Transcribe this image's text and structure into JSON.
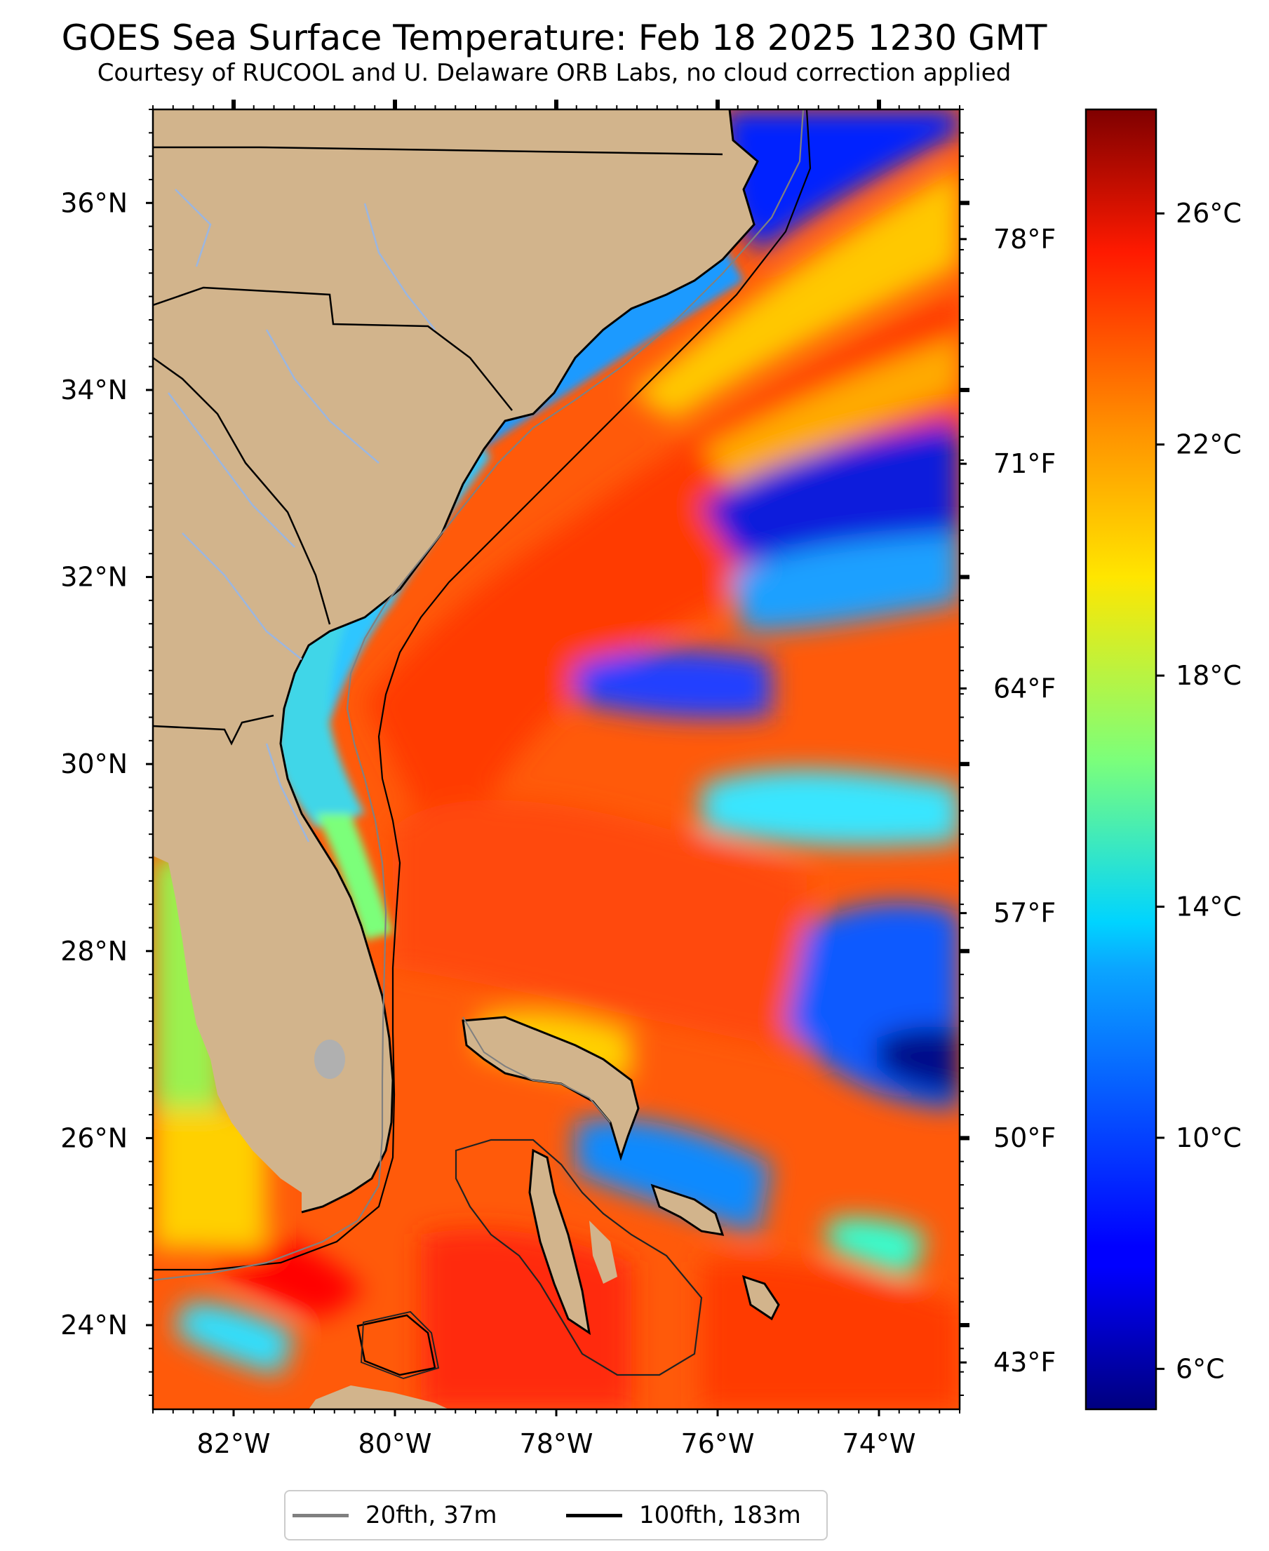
{
  "title": "GOES Sea Surface Temperature: Feb 18 2025 1230 GMT",
  "subtitle": "Courtesy of RUCOOL and U. Delaware ORB Labs, no cloud correction applied",
  "colors": {
    "land": "#d2b48c",
    "land_border": "#000000",
    "rivers": "#9bb6e0",
    "contour_20fth": "#808080",
    "contour_100fth": "#000000",
    "no_data": "#ffffff"
  },
  "map": {
    "longitude_range": [
      -83,
      -73
    ],
    "latitude_range": [
      23.1,
      37
    ],
    "lat_labels": [
      "36°N",
      "34°N",
      "32°N",
      "30°N",
      "28°N",
      "26°N",
      "24°N"
    ],
    "lat_values": [
      36,
      34,
      32,
      30,
      28,
      26,
      24
    ],
    "lon_labels": [
      "82°W",
      "80°W",
      "78°W",
      "76°W",
      "74°W"
    ],
    "lon_values": [
      -82,
      -80,
      -78,
      -76,
      -74
    ],
    "fahrenheit_labels": [
      "78°F",
      "71°F",
      "64°F",
      "57°F",
      "50°F",
      "43°F"
    ],
    "fahrenheit_values": [
      78,
      71,
      64,
      57,
      50,
      43
    ]
  },
  "colorbar": {
    "colormap": "jet",
    "range_c": [
      5.3,
      27.8
    ],
    "tick_labels": [
      "26°C",
      "22°C",
      "18°C",
      "14°C",
      "10°C",
      "6°C"
    ],
    "tick_values": [
      26,
      22,
      18,
      14,
      10,
      6
    ]
  },
  "legend": {
    "entries": [
      {
        "label": "20fth, 37m",
        "color": "#808080"
      },
      {
        "label": "100fth, 183m",
        "color": "#000000"
      }
    ]
  }
}
